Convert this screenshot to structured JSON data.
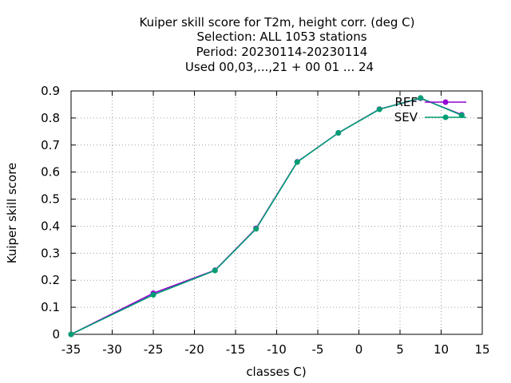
{
  "chart_data": {
    "type": "line",
    "title_lines": [
      "Kuiper skill score  for T2m, height corr. (deg C)",
      "Selection: ALL   1053 stations",
      "Period: 20230114-20230114",
      "Used  00,03,...,21  + 00 01 ... 24"
    ],
    "xlabel": "classes C)",
    "ylabel": "Kuiper skill score",
    "xlim": [
      -35,
      15
    ],
    "ylim": [
      0,
      0.9
    ],
    "x_ticks": [
      "-35",
      "-30",
      "-25",
      "-20",
      "-15",
      "-10",
      "-5",
      "0",
      "5",
      "10",
      "15"
    ],
    "y_ticks": [
      "0",
      "0.1",
      "0.2",
      "0.3",
      "0.4",
      "0.5",
      "0.6",
      "0.7",
      "0.8",
      "0.9"
    ],
    "grid": true,
    "legend_position": "top-right",
    "series": [
      {
        "name": "REF",
        "color": "#9400d3",
        "marker": "circle",
        "x": [
          -35,
          -25,
          -17.5,
          -12.5,
          -7.5,
          -2.5,
          2.5,
          7.5,
          12.5
        ],
        "y": [
          0.0,
          0.152,
          0.237,
          0.392,
          0.638,
          0.745,
          0.833,
          0.873,
          0.812
        ]
      },
      {
        "name": "SEV",
        "color": "#009e73",
        "marker": "circle",
        "x": [
          -35,
          -25,
          -17.5,
          -12.5,
          -7.5,
          -2.5,
          2.5,
          7.5,
          12.5
        ],
        "y": [
          0.0,
          0.146,
          0.236,
          0.39,
          0.637,
          0.745,
          0.832,
          0.874,
          0.81
        ]
      }
    ]
  }
}
